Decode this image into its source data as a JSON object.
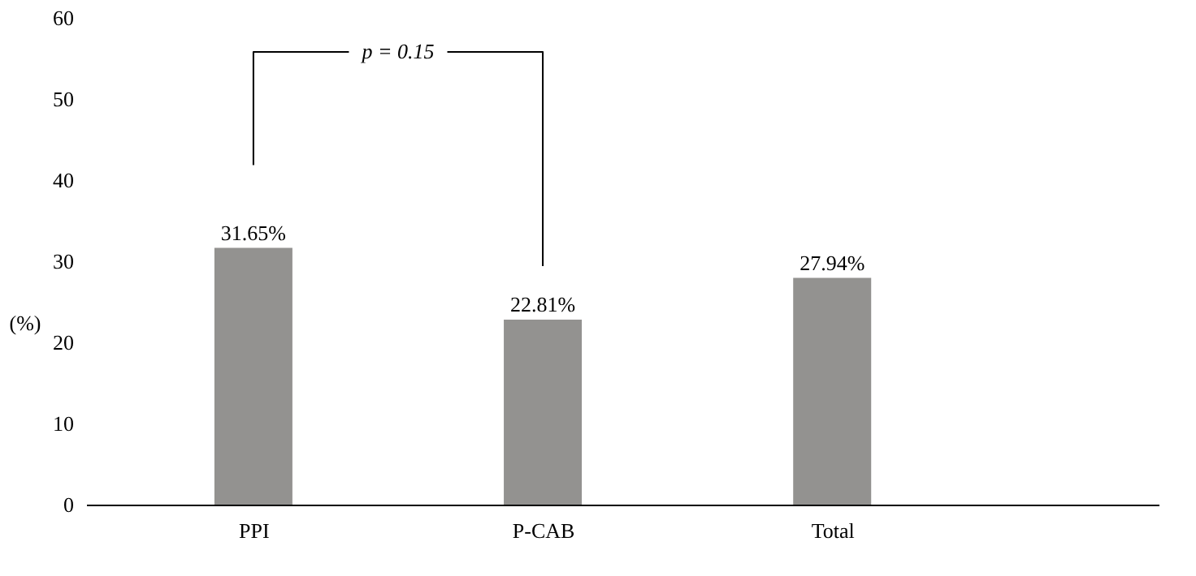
{
  "chart_data": {
    "type": "bar",
    "ylabel": "(%)",
    "categories": [
      "PPI",
      "P-CAB",
      "Total"
    ],
    "values": [
      31.65,
      22.81,
      27.94
    ],
    "color": "#939290",
    "value_labels": [
      "31.65%",
      "22.81%",
      "27.94%"
    ],
    "ylim": [
      0,
      60
    ],
    "yticks": [
      0,
      10,
      20,
      30,
      40,
      50,
      60
    ],
    "grid": false,
    "annotations": [
      "p = 0.15"
    ]
  }
}
